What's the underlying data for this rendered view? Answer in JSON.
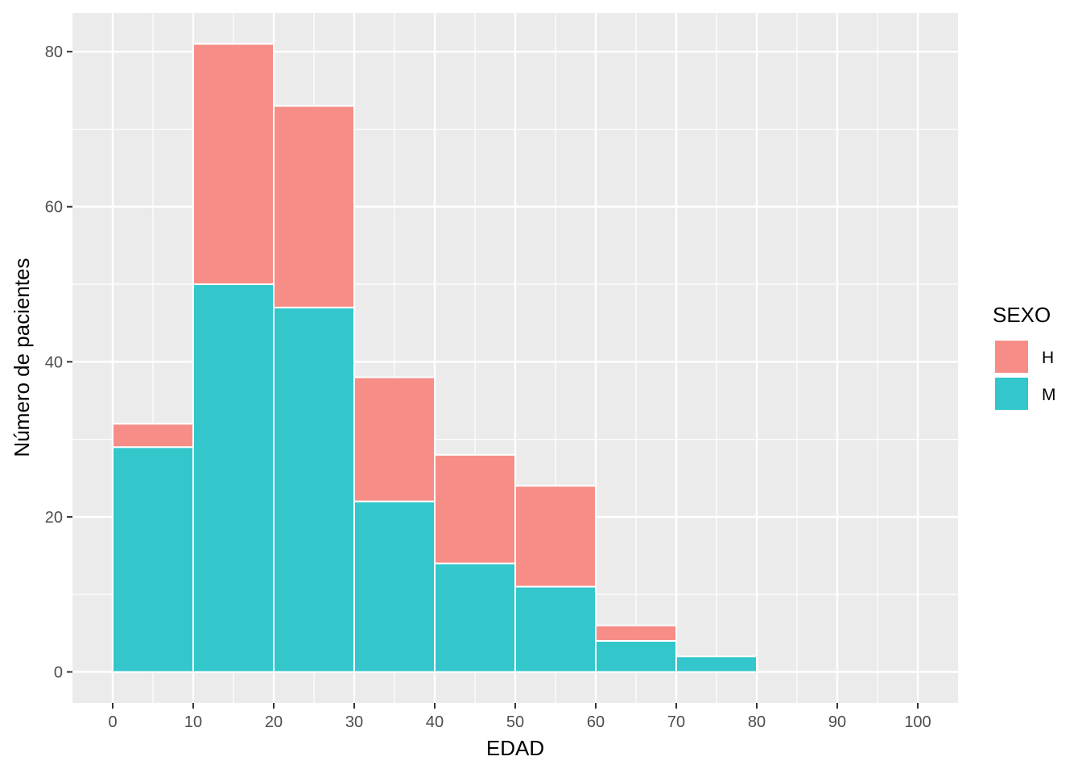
{
  "chart_data": {
    "type": "bar",
    "stacked": true,
    "xlabel": "EDAD",
    "ylabel": "Número de pacientes",
    "xlim": [
      -5,
      105
    ],
    "ylim": [
      -4,
      85
    ],
    "x_ticks": [
      0,
      10,
      20,
      30,
      40,
      50,
      60,
      70,
      80,
      90,
      100
    ],
    "y_ticks": [
      0,
      20,
      40,
      60,
      80
    ],
    "bins": [
      {
        "start": 0,
        "end": 10
      },
      {
        "start": 10,
        "end": 20
      },
      {
        "start": 20,
        "end": 30
      },
      {
        "start": 30,
        "end": 40
      },
      {
        "start": 40,
        "end": 50
      },
      {
        "start": 50,
        "end": 60
      },
      {
        "start": 60,
        "end": 70
      },
      {
        "start": 70,
        "end": 80
      },
      {
        "start": 80,
        "end": 90
      },
      {
        "start": 90,
        "end": 100
      }
    ],
    "series": [
      {
        "name": "M",
        "color": "#33C6CB",
        "values": [
          29,
          50,
          47,
          22,
          14,
          11,
          4,
          2,
          0,
          0
        ]
      },
      {
        "name": "H",
        "color": "#F78D87",
        "values": [
          3,
          31,
          26,
          16,
          14,
          13,
          2,
          0,
          0,
          0
        ]
      }
    ],
    "legend": {
      "title": "SEXO",
      "position": "right",
      "entries": [
        {
          "label": "H",
          "color": "#F78D87"
        },
        {
          "label": "M",
          "color": "#33C6CB"
        }
      ]
    },
    "grid": true,
    "panel_background": "#EBEBEB"
  }
}
